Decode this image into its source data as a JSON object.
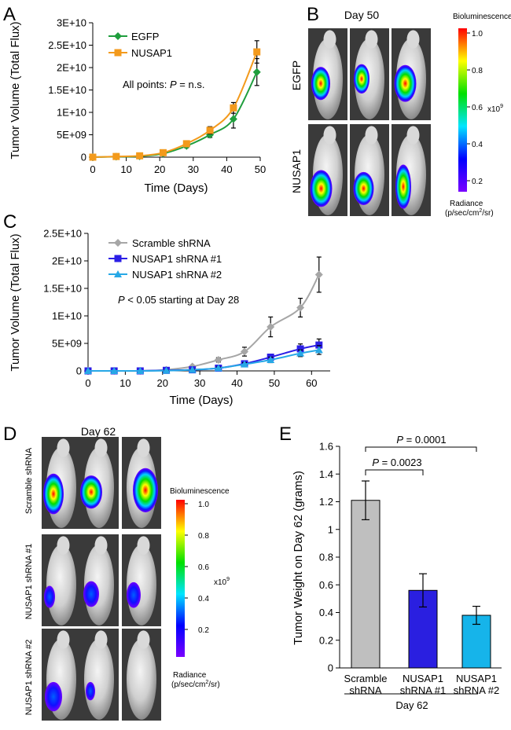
{
  "panels": {
    "A": "A",
    "B": "B",
    "C": "C",
    "D": "D",
    "E": "E"
  },
  "colors": {
    "egfp": "#1f9e3d",
    "nusap1": "#f39a1c",
    "scramble": "#a6a6a6",
    "kd1": "#2b1ee6",
    "kd2": "#27a8e6",
    "bar1": "#bfbfbf",
    "bar2": "#2a1fe0",
    "bar3": "#16b4ea"
  },
  "panelB": {
    "title": "Day 50",
    "row1": "EGFP",
    "row2": "NUSAP1",
    "scale_title": "Bioluminescence",
    "scale_ticks": [
      "1.0",
      "0.8",
      "0.6",
      "0.4",
      "0.2"
    ],
    "scale_unit": "x10",
    "scale_exp": "9",
    "radiance_line1": "Radiance",
    "radiance_line2_a": "(p/sec/cm",
    "radiance_line2_sup": "2",
    "radiance_line2_b": "/sr)"
  },
  "panelD": {
    "title": "Day 62",
    "row1": "Scramble shRNA",
    "row2": "NUSAP1 shRNA #1",
    "row3": "NUSAP1 shRNA #2",
    "scale_title": "Bioluminescence",
    "scale_ticks": [
      "1.0",
      "0.8",
      "0.6",
      "0.4",
      "0.2"
    ],
    "scale_unit": "x10",
    "scale_exp": "9",
    "radiance_line1": "Radiance",
    "radiance_line2_a": "(p/sec/cm",
    "radiance_line2_sup": "2",
    "radiance_line2_b": "/sr)"
  },
  "chart_data": [
    {
      "id": "A",
      "type": "line",
      "ylabel": "Tumor Volume (Total Flux)",
      "xlabel": "Time (Days)",
      "xlim": [
        0,
        50
      ],
      "ylim": [
        0,
        30000000000
      ],
      "xticks": [
        0,
        10,
        20,
        30,
        40,
        50
      ],
      "yticks": [
        0,
        5000000000,
        10000000000,
        15000000000,
        20000000000,
        25000000000,
        30000000000
      ],
      "ytick_labels": [
        "0",
        "5E+09",
        "1E+10",
        "1.5E+10",
        "2E+10",
        "2.5E+10",
        "3E+10"
      ],
      "annotation_a": "All points: ",
      "annotation_p": "P",
      "annotation_b": " = n.s.",
      "legend_position": "top-left",
      "series": [
        {
          "name": "EGFP",
          "marker": "diamond",
          "x": [
            0,
            7,
            14,
            21,
            28,
            35,
            42,
            49
          ],
          "y": [
            0,
            100000000,
            200000000,
            800000000,
            2500000000,
            5000000000,
            8500000000,
            19000000000
          ],
          "err": [
            0,
            50000000,
            100000000,
            200000000,
            400000000,
            600000000,
            2000000000,
            3000000000
          ]
        },
        {
          "name": "NUSAP1",
          "marker": "square",
          "x": [
            0,
            7,
            14,
            21,
            28,
            35,
            42,
            49
          ],
          "y": [
            0,
            150000000,
            300000000,
            1000000000,
            3000000000,
            6000000000,
            11000000000,
            23500000000
          ],
          "err": [
            0,
            50000000,
            100000000,
            200000000,
            400000000,
            800000000,
            1200000000,
            2500000000
          ]
        }
      ]
    },
    {
      "id": "C",
      "type": "line",
      "ylabel": "Tumor Volume (Total Flux)",
      "xlabel": "Time (Days)",
      "xlim": [
        0,
        65
      ],
      "ylim": [
        0,
        25000000000
      ],
      "xticks": [
        0,
        10,
        20,
        30,
        40,
        50,
        60
      ],
      "yticks": [
        0,
        5000000000,
        10000000000,
        15000000000,
        20000000000,
        25000000000
      ],
      "ytick_labels": [
        "0",
        "5E+09",
        "1E+10",
        "1.5E+10",
        "2E+10",
        "2.5E+10"
      ],
      "annotation_p": "P",
      "annotation_b": " < 0.05 starting at Day 28",
      "legend_position": "top-left",
      "series": [
        {
          "name": "Scramble shRNA",
          "marker": "diamond",
          "x": [
            0,
            7,
            14,
            21,
            28,
            35,
            42,
            49,
            57,
            62
          ],
          "y": [
            0,
            0,
            0,
            200000000,
            800000000,
            2000000000,
            3500000000,
            8000000000,
            11500000000,
            17500000000
          ],
          "err": [
            0,
            0,
            0,
            100000000,
            200000000,
            400000000,
            800000000,
            1800000000,
            1700000000,
            3200000000
          ]
        },
        {
          "name": "NUSAP1 shRNA #1",
          "marker": "square",
          "x": [
            0,
            7,
            14,
            21,
            28,
            35,
            42,
            49,
            57,
            62
          ],
          "y": [
            0,
            0,
            0,
            100000000,
            200000000,
            500000000,
            1300000000,
            2500000000,
            4000000000,
            4700000000
          ],
          "err": [
            0,
            0,
            0,
            50000000,
            100000000,
            200000000,
            300000000,
            500000000,
            900000000,
            1100000000
          ]
        },
        {
          "name": "NUSAP1 shRNA #2",
          "marker": "triangle",
          "x": [
            0,
            7,
            14,
            21,
            28,
            35,
            42,
            49,
            57,
            62
          ],
          "y": [
            0,
            0,
            0,
            50000000,
            200000000,
            500000000,
            1200000000,
            2000000000,
            3200000000,
            3800000000
          ],
          "err": [
            0,
            0,
            0,
            50000000,
            100000000,
            200000000,
            300000000,
            500000000,
            600000000,
            800000000
          ]
        }
      ]
    },
    {
      "id": "E",
      "type": "bar",
      "ylabel": "Tumor Weight on Day 62 (grams)",
      "ylim": [
        0,
        1.6
      ],
      "yticks": [
        0,
        0.2,
        0.4,
        0.6,
        0.8,
        1,
        1.2,
        1.4,
        1.6
      ],
      "ytick_labels": [
        "0",
        "0.2",
        "0.4",
        "0.6",
        "0.8",
        "1",
        "1.2",
        "1.4",
        "1.6"
      ],
      "categories": [
        [
          "Scramble",
          "shRNA"
        ],
        [
          "NUSAP1",
          "shRNA #1"
        ],
        [
          "NUSAP1",
          "shRNA #2"
        ]
      ],
      "values": [
        1.21,
        0.56,
        0.38
      ],
      "err": [
        0.14,
        0.12,
        0.065
      ],
      "group_label": "Day 62",
      "comparisons": [
        {
          "p": "P",
          "text": " = 0.0023"
        },
        {
          "p": "P",
          "text": " = 0.0001"
        }
      ]
    }
  ]
}
